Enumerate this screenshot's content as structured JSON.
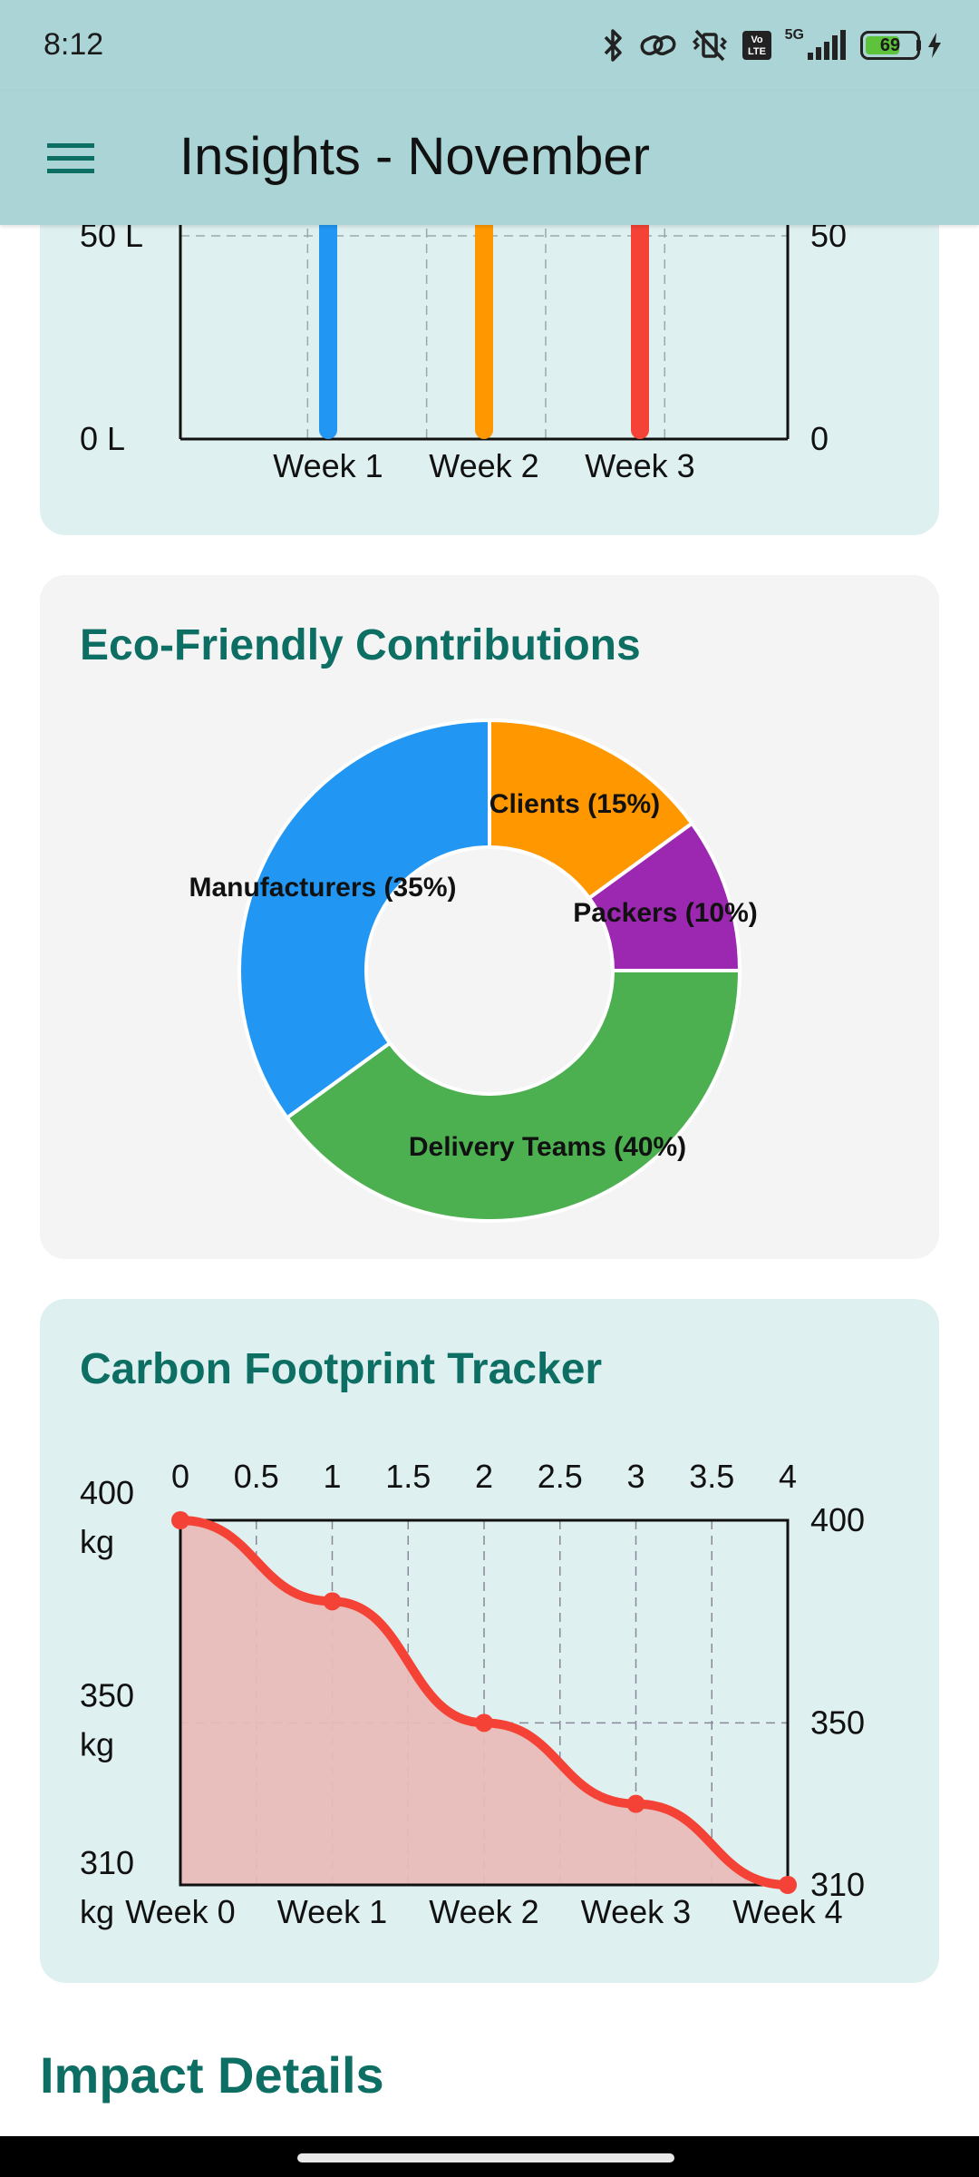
{
  "status_bar": {
    "time": "8:12",
    "icons": [
      "bluetooth-icon",
      "link-icon",
      "vibrate-off-icon",
      "volte-icon",
      "signal-5g-icon",
      "battery-charging-icon"
    ],
    "volte": "Vo LTE",
    "network": "5G",
    "battery_level": "69",
    "battery_fraction": 0.69,
    "battery_color": "#5cc33a"
  },
  "app_bar": {
    "title": "Insights - November",
    "menu_icon": "hamburger-menu-icon",
    "background": "#abd4d6"
  },
  "colors": {
    "accent_title": "#0d6e63",
    "card_teal": "#dff0f0",
    "card_gray": "#f4f4f4"
  },
  "chart_data": [
    {
      "id": "water",
      "type": "bar",
      "categories": [
        "Week 1",
        "Week 2",
        "Week 3"
      ],
      "values": [
        60,
        60,
        60
      ],
      "colors": [
        "#2196f3",
        "#ff9800",
        "#f44336"
      ],
      "ylim": [
        0,
        50
      ],
      "y_tick_labels_left": [
        "0 L",
        "50 L"
      ],
      "y_tick_labels_right": [
        "0",
        "50"
      ],
      "grid": true
    },
    {
      "id": "eco",
      "type": "pie",
      "title": "Eco-Friendly Contributions",
      "donut": true,
      "slices": [
        {
          "label": "Clients (15%)",
          "value": 15,
          "color": "#ff9800"
        },
        {
          "label": "Packers (10%)",
          "value": 10,
          "color": "#9c27b0"
        },
        {
          "label": "Delivery Teams (40%)",
          "value": 40,
          "color": "#4caf50"
        },
        {
          "label": "Manufacturers (35%)",
          "value": 35,
          "color": "#2196f3"
        }
      ]
    },
    {
      "id": "carbon",
      "type": "area",
      "title": "Carbon Footprint Tracker",
      "x": [
        0,
        1,
        2,
        3,
        4
      ],
      "y": [
        400,
        380,
        350,
        330,
        310
      ],
      "x_labels_bottom": [
        "Week 0",
        "Week 1",
        "Week 2",
        "Week 3",
        "Week 4"
      ],
      "x_ticks_top": [
        "0",
        "0.5",
        "1",
        "1.5",
        "2",
        "2.5",
        "3",
        "3.5",
        "4"
      ],
      "y_ticks_left": [
        {
          "value": 400,
          "label": "400",
          "unit": "kg"
        },
        {
          "value": 350,
          "label": "350",
          "unit": "kg"
        },
        {
          "value": 310,
          "label": "310",
          "unit": "kg"
        }
      ],
      "y_ticks_right": [
        {
          "value": 400,
          "label": "400"
        },
        {
          "value": 350,
          "label": "350"
        },
        {
          "value": 310,
          "label": "310"
        }
      ],
      "xlim": [
        0,
        4
      ],
      "ylim": [
        310,
        400
      ],
      "line_color": "#f44336",
      "fill_color": "#e8bcb8",
      "grid": true
    }
  ],
  "impact": {
    "title": "Impact Details"
  }
}
